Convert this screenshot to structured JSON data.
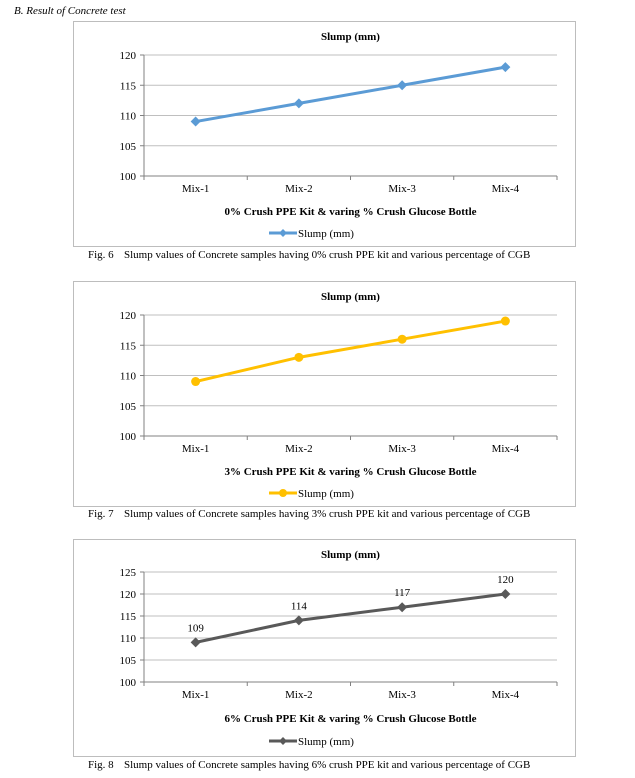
{
  "section_heading": "B.   Result of Concrete test",
  "chart_data": [
    {
      "type": "line",
      "title": "Slump (mm)",
      "xlabel": "0% Crush PPE Kit & varing % Crush Glucose Bottle",
      "ylabel": "",
      "categories": [
        "Mix-1",
        "Mix-2",
        "Mix-3",
        "Mix-4"
      ],
      "series": [
        {
          "name": "Slump (mm)",
          "values": [
            109,
            112,
            115,
            118
          ]
        }
      ],
      "ylim": [
        100,
        120
      ],
      "yticks": [
        100,
        105,
        110,
        115,
        120
      ],
      "grid": true,
      "legend": "bottom",
      "color": "#5b9bd5",
      "marker": "diamond",
      "data_labels": false
    },
    {
      "type": "line",
      "title": "Slump (mm)",
      "xlabel": "3% Crush PPE Kit & varing % Crush Glucose Bottle",
      "ylabel": "",
      "categories": [
        "Mix-1",
        "Mix-2",
        "Mix-3",
        "Mix-4"
      ],
      "series": [
        {
          "name": "Slump (mm)",
          "values": [
            109,
            113,
            116,
            119
          ]
        }
      ],
      "ylim": [
        100,
        120
      ],
      "yticks": [
        100,
        105,
        110,
        115,
        120
      ],
      "grid": true,
      "legend": "bottom",
      "color": "#ffc000",
      "marker": "circle",
      "data_labels": false
    },
    {
      "type": "line",
      "title": "Slump (mm)",
      "xlabel": "6% Crush PPE Kit & varing % Crush Glucose Bottle",
      "ylabel": "",
      "categories": [
        "Mix-1",
        "Mix-2",
        "Mix-3",
        "Mix-4"
      ],
      "series": [
        {
          "name": "Slump (mm)",
          "values": [
            109,
            114,
            117,
            120
          ]
        }
      ],
      "ylim": [
        100,
        125
      ],
      "yticks": [
        100,
        105,
        110,
        115,
        120,
        125
      ],
      "grid": true,
      "legend": "bottom",
      "color": "#595959",
      "marker": "diamond",
      "data_labels": true
    }
  ],
  "captions": [
    {
      "fig": "Fig. 6",
      "text": "Slump values of Concrete samples having 0% crush PPE kit and various percentage of CGB"
    },
    {
      "fig": "Fig. 7",
      "text": "Slump values of Concrete samples having 3% crush PPE kit and various percentage of CGB"
    },
    {
      "fig": "Fig. 8",
      "text": "Slump values of Concrete samples having 6% crush PPE kit and various percentage of CGB"
    }
  ]
}
